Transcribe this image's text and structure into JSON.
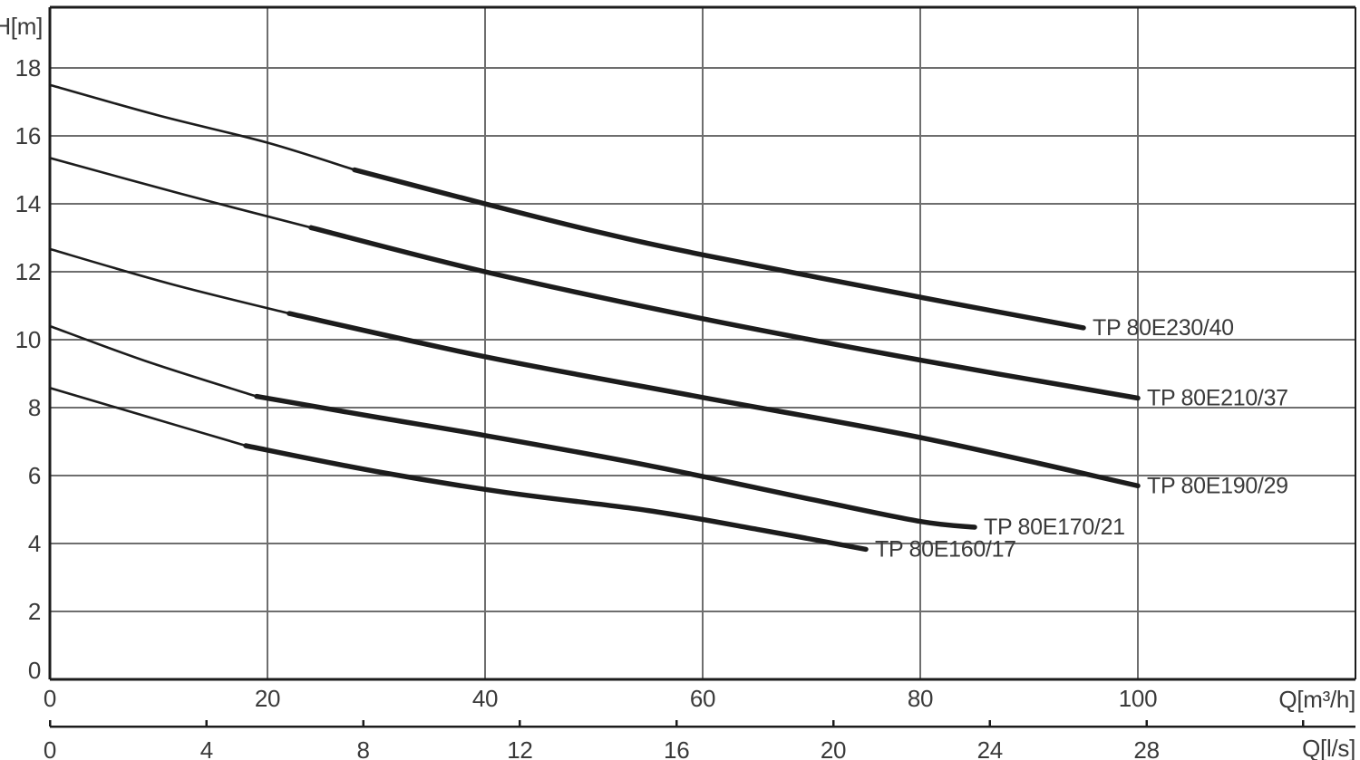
{
  "chart_data": {
    "type": "line",
    "title": "",
    "ylabel": "H[m]",
    "xlabel": "Q[m³/h]",
    "x2label": "Q[l/s]",
    "grid": true,
    "legend_position": "curve-end-labels",
    "y_axis": {
      "ticks": [
        0,
        2,
        4,
        6,
        8,
        10,
        12,
        14,
        16,
        18
      ],
      "range": [
        0,
        19.8
      ],
      "unit": "m"
    },
    "x_axis": {
      "ticks": [
        0,
        20,
        40,
        60,
        80,
        100
      ],
      "range": [
        0,
        120
      ],
      "unit": "m³/h"
    },
    "x2_axis": {
      "unit": "l/s",
      "factor_to_m3h": 3.6,
      "ticks": [
        {
          "value": 0,
          "label": "0"
        },
        {
          "value": 4,
          "label": "4"
        },
        {
          "value": 8,
          "label": "8"
        },
        {
          "value": 12,
          "label": "12"
        },
        {
          "value": 16,
          "label": "16"
        },
        {
          "value": 20,
          "label": "20"
        },
        {
          "value": 24,
          "label": "24"
        },
        {
          "value": 28,
          "label": "28"
        },
        {
          "value": 32,
          "label": ""
        }
      ]
    },
    "series": [
      {
        "name": "TP 80E230/40",
        "thick_from": 3,
        "points_q_h": [
          [
            0,
            17.5
          ],
          [
            10,
            16.6
          ],
          [
            20,
            15.8
          ],
          [
            28,
            15.0
          ],
          [
            40,
            14.0
          ],
          [
            50,
            13.2
          ],
          [
            60,
            12.5
          ],
          [
            80,
            11.25
          ],
          [
            95,
            10.35
          ]
        ]
      },
      {
        "name": "TP 80E210/37",
        "thick_from": 2,
        "points_q_h": [
          [
            0,
            15.35
          ],
          [
            12,
            14.3
          ],
          [
            24,
            13.3
          ],
          [
            40,
            12.0
          ],
          [
            60,
            10.62
          ],
          [
            80,
            9.4
          ],
          [
            100,
            8.28
          ]
        ]
      },
      {
        "name": "TP 80E190/29",
        "thick_from": 2,
        "points_q_h": [
          [
            0,
            12.67
          ],
          [
            11,
            11.65
          ],
          [
            22,
            10.77
          ],
          [
            40,
            9.5
          ],
          [
            60,
            8.3
          ],
          [
            80,
            7.12
          ],
          [
            100,
            5.7
          ]
        ]
      },
      {
        "name": "TP 80E170/21",
        "thick_from": 2,
        "points_q_h": [
          [
            0,
            10.4
          ],
          [
            9,
            9.35
          ],
          [
            19,
            8.33
          ],
          [
            30,
            7.72
          ],
          [
            40,
            7.18
          ],
          [
            55,
            6.3
          ],
          [
            70,
            5.3
          ],
          [
            80,
            4.65
          ],
          [
            85,
            4.48
          ]
        ]
      },
      {
        "name": "TP 80E160/17",
        "thick_from": 2,
        "points_q_h": [
          [
            0,
            8.58
          ],
          [
            9,
            7.73
          ],
          [
            18,
            6.88
          ],
          [
            30,
            6.12
          ],
          [
            42,
            5.5
          ],
          [
            55,
            4.97
          ],
          [
            65,
            4.42
          ],
          [
            75,
            3.83
          ]
        ]
      }
    ],
    "colors": {
      "curve": "#1c1c1c",
      "grid": "#6e6e6e",
      "frame": "#1c1c1c",
      "text": "#3a3a3a",
      "background": "#ffffff"
    }
  }
}
